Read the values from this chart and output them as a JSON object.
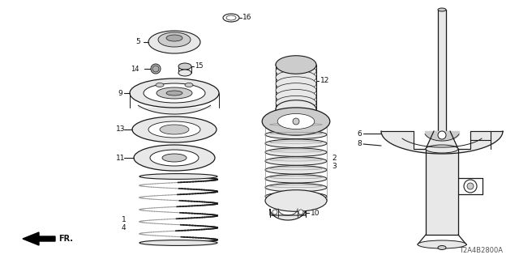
{
  "bg_color": "#ffffff",
  "line_color": "#1a1a1a",
  "label_color": "#111111",
  "diagram_code": "T2A4B2800A",
  "figsize": [
    6.4,
    3.2
  ],
  "dpi": 100,
  "xlim": [
    0,
    640
  ],
  "ylim": [
    0,
    320
  ]
}
